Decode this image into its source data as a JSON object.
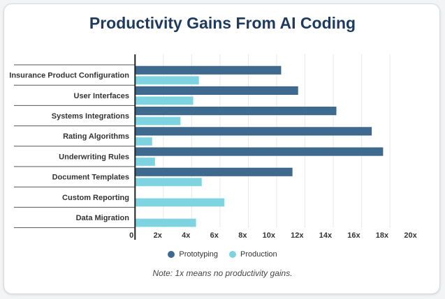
{
  "chart_data": {
    "type": "bar",
    "orientation": "horizontal",
    "title": "Productivity Gains From AI Coding",
    "categories": [
      "Insurance Product Configuration",
      "User Interfaces",
      "Systems Integrations",
      "Rating Algorithms",
      "Underwriting Rules",
      "Document Templates",
      "Custom Reporting",
      "Data Migration"
    ],
    "series": [
      {
        "name": "Prototyping",
        "color": "#3e6a8f",
        "values": [
          10.3,
          11.5,
          14.2,
          16.7,
          17.5,
          11.1,
          null,
          null
        ]
      },
      {
        "name": "Production",
        "color": "#7dd3df",
        "values": [
          4.5,
          4.1,
          3.2,
          1.2,
          1.4,
          4.7,
          6.3,
          4.3
        ]
      }
    ],
    "xlim": [
      0,
      20
    ],
    "xticks": [
      0,
      2,
      4,
      6,
      8,
      10,
      12,
      14,
      16,
      18,
      20
    ],
    "xtick_labels": [
      "0",
      "2x",
      "4x",
      "6x",
      "8x",
      "10x",
      "12x",
      "14x",
      "16x",
      "18x",
      "20x"
    ],
    "grid": true,
    "legend_position": "bottom",
    "note": "Note: 1x means no productivity gains."
  }
}
